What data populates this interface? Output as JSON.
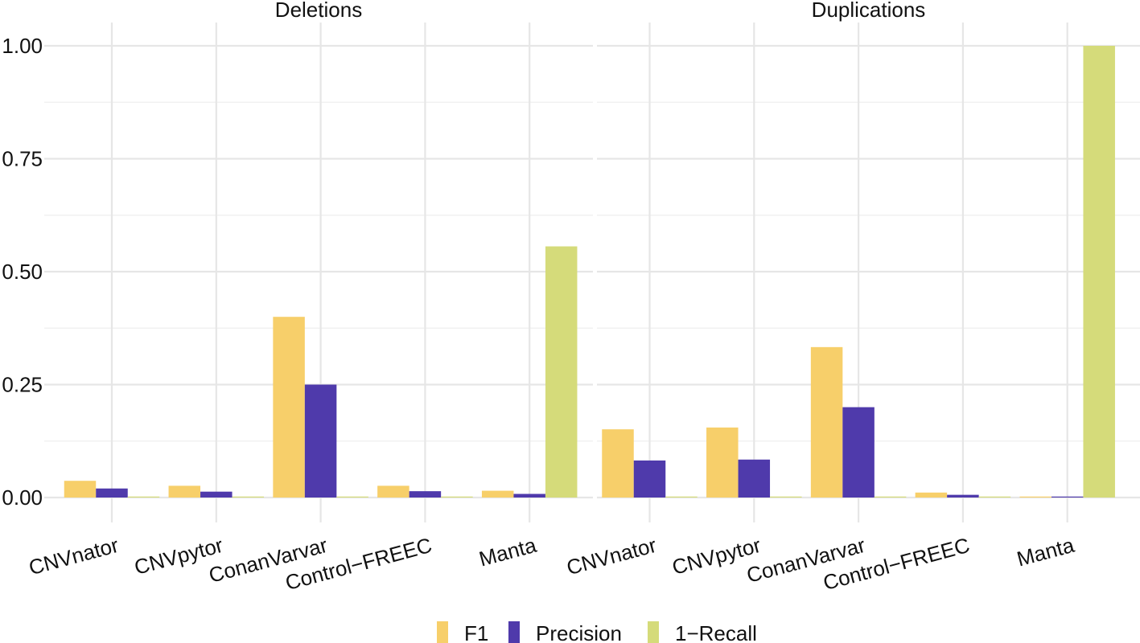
{
  "chart_data": {
    "type": "bar",
    "layout": "faceted-grouped",
    "categories": [
      "CNVnator",
      "CNVpytor",
      "ConanVarvar",
      "Control−FREEC",
      "Manta"
    ],
    "ylim": [
      0,
      1.0
    ],
    "yticks": [
      0.0,
      0.25,
      0.5,
      0.75,
      1.0
    ],
    "ytick_labels": [
      "0.00",
      "0.25",
      "0.50",
      "0.75",
      "1.00"
    ],
    "grid": true,
    "legend_position": "bottom",
    "series_colors": {
      "F1": "#F7CF6A",
      "Precision": "#4F3AAB",
      "1−Recall": "#D5DB7A"
    },
    "legend": [
      "F1",
      "Precision",
      "1−Recall"
    ],
    "panels": [
      {
        "title": "Deletions",
        "series": [
          {
            "name": "F1",
            "values": [
              0.037,
              0.026,
              0.4,
              0.026,
              0.015
            ]
          },
          {
            "name": "Precision",
            "values": [
              0.02,
              0.013,
              0.25,
              0.014,
              0.008
            ]
          },
          {
            "name": "1−Recall",
            "values": [
              0.0,
              0.0,
              0.0,
              0.0,
              0.556
            ]
          }
        ]
      },
      {
        "title": "Duplications",
        "series": [
          {
            "name": "F1",
            "values": [
              0.151,
              0.155,
              0.333,
              0.011,
              0.0
            ]
          },
          {
            "name": "Precision",
            "values": [
              0.082,
              0.084,
              0.2,
              0.006,
              0.0
            ]
          },
          {
            "name": "1−Recall",
            "values": [
              0.0,
              0.0,
              0.0,
              0.0,
              1.0
            ]
          }
        ]
      }
    ]
  }
}
